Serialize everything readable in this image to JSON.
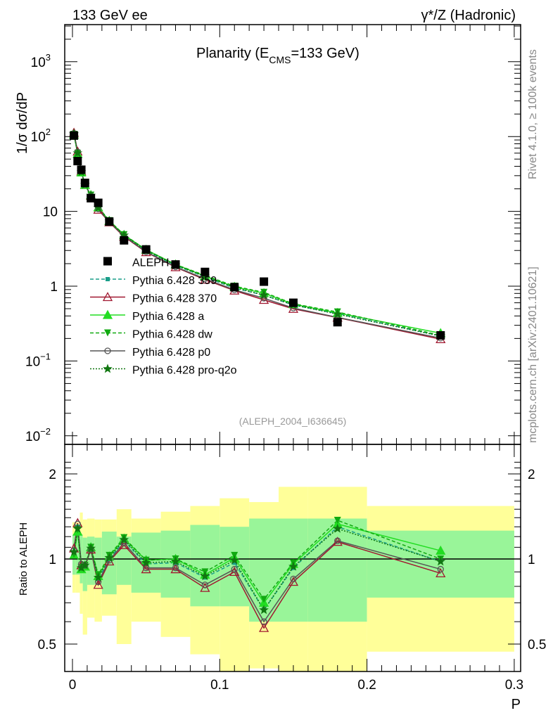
{
  "header": {
    "left": "133 GeV ee",
    "right": "γ*/Z (Hadronic)"
  },
  "side": {
    "rivet": "Rivet 4.1.0, ≥ 100k events",
    "mcplots": "mcplots.cern.ch [arXiv:2401.10621]"
  },
  "chart_data": {
    "type": "line",
    "title": "Planarity (E",
    "title_sub": "CMS",
    "title_tail": "=133 GeV)",
    "analysis_tag": "(ALEPH_2004_I636645)",
    "xlabel": "P",
    "ylabel": "1/σ  dσ/dP",
    "ratio_ylabel": "Ratio to ALEPH",
    "xlim": [
      0,
      0.3
    ],
    "ylim": [
      0.008,
      3000
    ],
    "ratio_ylim": [
      0.4,
      2.35
    ],
    "x_ticks": [
      "0",
      "0.1",
      "0.2",
      "0.3"
    ],
    "x_tick_values": [
      0,
      0.1,
      0.2,
      0.3
    ],
    "y_ticks": [
      {
        "base": "10",
        "exp": "3",
        "v": 1000
      },
      {
        "base": "10",
        "exp": "2",
        "v": 100
      },
      {
        "base": "10",
        "exp": "",
        "v": 10
      },
      {
        "base": "1",
        "exp": "",
        "v": 1
      },
      {
        "base": "10",
        "exp": "−1",
        "v": 0.1
      },
      {
        "base": "10",
        "exp": "−2",
        "v": 0.01
      }
    ],
    "ratio_ticks": [
      {
        "label": "2",
        "v": 2
      },
      {
        "label": "1",
        "v": 1
      },
      {
        "label": "0.5",
        "v": 0.5
      }
    ],
    "bin_edges": [
      0,
      0.002,
      0.005,
      0.007,
      0.01,
      0.015,
      0.02,
      0.03,
      0.04,
      0.06,
      0.08,
      0.1,
      0.12,
      0.14,
      0.16,
      0.2,
      0.3
    ],
    "x": [
      0.001,
      0.0035,
      0.006,
      0.0085,
      0.0125,
      0.0175,
      0.025,
      0.035,
      0.05,
      0.07,
      0.09,
      0.11,
      0.13,
      0.15,
      0.18,
      0.25
    ],
    "data": {
      "name": "ALEPH",
      "values": [
        103,
        47,
        36,
        24,
        15,
        13,
        7.3,
        4.1,
        3.1,
        1.95,
        1.55,
        0.97,
        1.15,
        0.6,
        0.33,
        0.22
      ]
    },
    "band_total": {
      "low": [
        0.76,
        0.76,
        0.64,
        0.54,
        0.62,
        0.6,
        0.63,
        0.5,
        0.6,
        0.53,
        0.46,
        0.4,
        0.41,
        0.4,
        0.4,
        0.47
      ],
      "high": [
        1.35,
        1.35,
        1.46,
        1.38,
        1.39,
        1.38,
        1.38,
        1.5,
        1.39,
        1.47,
        1.54,
        1.64,
        1.59,
        1.8,
        1.8,
        1.54
      ]
    },
    "band_stat": {
      "low": [
        0.88,
        0.88,
        0.82,
        0.77,
        0.81,
        0.81,
        0.75,
        0.81,
        0.76,
        0.73,
        0.68,
        0.68,
        0.6,
        0.6,
        0.6,
        0.73
      ],
      "high": [
        1.22,
        1.22,
        1.22,
        1.19,
        1.2,
        1.19,
        1.25,
        1.2,
        1.24,
        1.26,
        1.32,
        1.3,
        1.39,
        1.39,
        1.39,
        1.26
      ]
    },
    "series": [
      {
        "name": "Pythia 6.428 359",
        "color": "#1a9e8a",
        "dash": "5,3",
        "marker": "square",
        "ratio": [
          1.05,
          1.3,
          0.93,
          0.94,
          1.09,
          0.85,
          1.0,
          1.16,
          0.96,
          0.97,
          0.86,
          0.97,
          0.66,
          0.93,
          1.3,
          0.98
        ]
      },
      {
        "name": "Pythia 6.428 370",
        "color": "#a01830",
        "dash": "",
        "marker": "triangle-open",
        "ratio": [
          1.09,
          1.34,
          0.95,
          0.94,
          1.08,
          0.81,
          0.98,
          1.12,
          0.92,
          0.92,
          0.79,
          0.9,
          0.57,
          0.83,
          1.15,
          0.89
        ]
      },
      {
        "name": "Pythia 6.428 a",
        "color": "#22dd22",
        "dash": "",
        "marker": "triangle",
        "ratio": [
          1.03,
          1.25,
          0.92,
          0.94,
          1.1,
          0.87,
          1.02,
          1.18,
          0.99,
          1.0,
          0.88,
          1.01,
          0.7,
          0.96,
          1.33,
          1.07
        ]
      },
      {
        "name": "Pythia 6.428 dw",
        "color": "#11aa11",
        "dash": "5,3",
        "marker": "triangle-down",
        "ratio": [
          1.04,
          1.27,
          0.93,
          0.95,
          1.1,
          0.88,
          1.03,
          1.19,
          0.99,
          1.0,
          0.9,
          1.03,
          0.72,
          0.97,
          1.37,
          1.0
        ]
      },
      {
        "name": "Pythia 6.428 p0",
        "color": "#555555",
        "dash": "",
        "marker": "circle-open",
        "ratio": [
          1.07,
          1.33,
          0.96,
          0.95,
          1.08,
          0.83,
          0.99,
          1.14,
          0.93,
          0.93,
          0.81,
          0.92,
          0.6,
          0.85,
          1.16,
          0.92
        ]
      },
      {
        "name": "Pythia 6.428 pro-q2o",
        "color": "#117711",
        "dash": "2,2",
        "marker": "star",
        "ratio": [
          1.06,
          1.28,
          0.93,
          0.95,
          1.09,
          0.86,
          1.01,
          1.17,
          0.97,
          0.98,
          0.87,
          0.99,
          0.66,
          0.94,
          1.28,
          0.98
        ]
      }
    ]
  }
}
